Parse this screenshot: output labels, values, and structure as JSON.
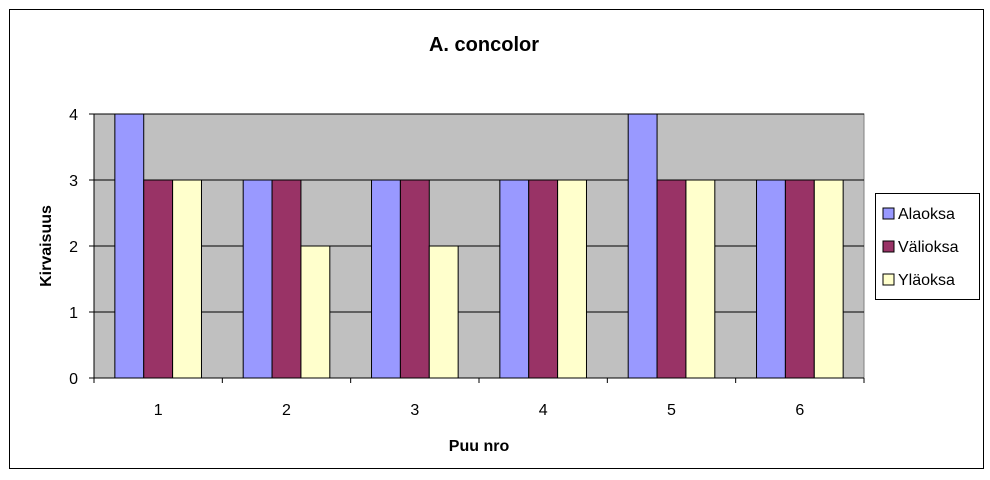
{
  "chart_data": {
    "type": "bar",
    "title": "A. concolor",
    "xlabel": "Puu nro",
    "ylabel": "Kirvaisuus",
    "categories": [
      "1",
      "2",
      "3",
      "4",
      "5",
      "6"
    ],
    "ylim": [
      0,
      4
    ],
    "yticks": [
      "0",
      "1",
      "2",
      "3",
      "4"
    ],
    "series": [
      {
        "name": "Alaoksa",
        "color": "#9999ff",
        "values": [
          4,
          3,
          3,
          3,
          4,
          3
        ]
      },
      {
        "name": "Välioksa",
        "color": "#993366",
        "values": [
          3,
          3,
          3,
          3,
          3,
          3
        ]
      },
      {
        "name": "Yläoksa",
        "color": "#ffffcc",
        "values": [
          3,
          2,
          2,
          3,
          3,
          3
        ]
      }
    ],
    "legend_position": "right",
    "plot_background": "#c0c0c0",
    "grid": true
  }
}
